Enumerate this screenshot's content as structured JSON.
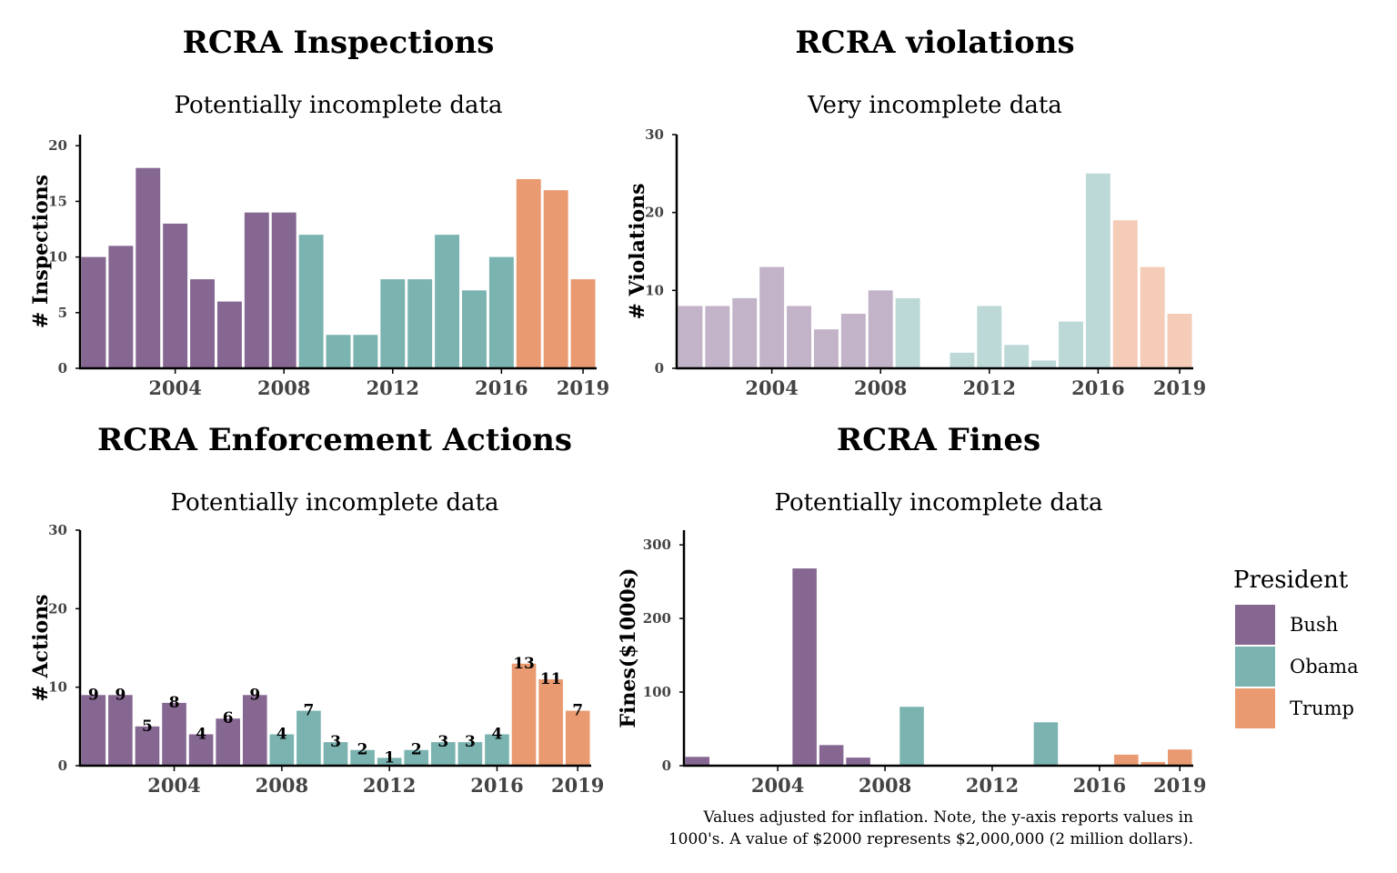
{
  "colors": {
    "Bush": "#866792",
    "Obama": "#7ab3b0",
    "Trump": "#e99a71"
  },
  "legend": {
    "title": "President",
    "items": [
      "Bush",
      "Obama",
      "Trump"
    ]
  },
  "note_lines": [
    "Values adjusted for inflation. Note, the y-axis reports values in",
    "1000's. A value of $2000 represents $2,000,000 (2 million dollars)."
  ],
  "chart_data": [
    {
      "type": "bar",
      "title": "RCRA Inspections",
      "subtitle": "Potentially incomplete data",
      "ylabel": "# Inspections",
      "ylim": [
        0,
        21
      ],
      "yticks": [
        0,
        5,
        10,
        15,
        20
      ],
      "xticks": [
        2004,
        2008,
        2012,
        2016,
        2019
      ],
      "faded": false,
      "data_labels": false,
      "bars": [
        {
          "year": 2001,
          "value": 10,
          "president": "Bush"
        },
        {
          "year": 2002,
          "value": 11,
          "president": "Bush"
        },
        {
          "year": 2003,
          "value": 18,
          "president": "Bush"
        },
        {
          "year": 2004,
          "value": 13,
          "president": "Bush"
        },
        {
          "year": 2005,
          "value": 8,
          "president": "Bush"
        },
        {
          "year": 2006,
          "value": 6,
          "president": "Bush"
        },
        {
          "year": 2007,
          "value": 14,
          "president": "Bush"
        },
        {
          "year": 2008,
          "value": 14,
          "president": "Bush"
        },
        {
          "year": 2009,
          "value": 12,
          "president": "Obama"
        },
        {
          "year": 2010,
          "value": 3,
          "president": "Obama"
        },
        {
          "year": 2011,
          "value": 3,
          "president": "Obama"
        },
        {
          "year": 2012,
          "value": 8,
          "president": "Obama"
        },
        {
          "year": 2013,
          "value": 8,
          "president": "Obama"
        },
        {
          "year": 2014,
          "value": 12,
          "president": "Obama"
        },
        {
          "year": 2015,
          "value": 7,
          "president": "Obama"
        },
        {
          "year": 2016,
          "value": 10,
          "president": "Obama"
        },
        {
          "year": 2017,
          "value": 17,
          "president": "Trump"
        },
        {
          "year": 2018,
          "value": 16,
          "president": "Trump"
        },
        {
          "year": 2019,
          "value": 8,
          "president": "Trump"
        }
      ]
    },
    {
      "type": "bar",
      "title": "RCRA violations",
      "subtitle": "Very incomplete data",
      "ylabel": "# Violations",
      "ylim": [
        0,
        30
      ],
      "yticks": [
        0,
        10,
        20,
        30
      ],
      "xticks": [
        2004,
        2008,
        2012,
        2016,
        2019
      ],
      "faded": true,
      "data_labels": false,
      "bars": [
        {
          "year": 2001,
          "value": 8,
          "president": "Bush"
        },
        {
          "year": 2002,
          "value": 8,
          "president": "Bush"
        },
        {
          "year": 2003,
          "value": 9,
          "president": "Bush"
        },
        {
          "year": 2004,
          "value": 13,
          "president": "Bush"
        },
        {
          "year": 2005,
          "value": 8,
          "president": "Bush"
        },
        {
          "year": 2006,
          "value": 5,
          "president": "Bush"
        },
        {
          "year": 2007,
          "value": 7,
          "president": "Bush"
        },
        {
          "year": 2008,
          "value": 10,
          "president": "Bush"
        },
        {
          "year": 2009,
          "value": 9,
          "president": "Obama"
        },
        {
          "year": 2011,
          "value": 2,
          "president": "Obama"
        },
        {
          "year": 2012,
          "value": 8,
          "president": "Obama"
        },
        {
          "year": 2013,
          "value": 3,
          "president": "Obama"
        },
        {
          "year": 2014,
          "value": 1,
          "president": "Obama"
        },
        {
          "year": 2015,
          "value": 6,
          "president": "Obama"
        },
        {
          "year": 2016,
          "value": 25,
          "president": "Obama"
        },
        {
          "year": 2017,
          "value": 19,
          "president": "Trump"
        },
        {
          "year": 2018,
          "value": 13,
          "president": "Trump"
        },
        {
          "year": 2019,
          "value": 7,
          "president": "Trump"
        }
      ]
    },
    {
      "type": "bar",
      "title": "RCRA Enforcement Actions",
      "subtitle": "Potentially incomplete data",
      "ylabel": "# Actions",
      "ylim": [
        0,
        30
      ],
      "yticks": [
        0,
        10,
        20,
        30
      ],
      "xticks": [
        2004,
        2008,
        2012,
        2016,
        2019
      ],
      "faded": false,
      "data_labels": true,
      "bars": [
        {
          "year": 2001,
          "value": 9,
          "president": "Bush"
        },
        {
          "year": 2002,
          "value": 9,
          "president": "Bush"
        },
        {
          "year": 2003,
          "value": 5,
          "president": "Bush"
        },
        {
          "year": 2004,
          "value": 8,
          "president": "Bush"
        },
        {
          "year": 2005,
          "value": 4,
          "president": "Bush"
        },
        {
          "year": 2006,
          "value": 6,
          "president": "Bush"
        },
        {
          "year": 2007,
          "value": 9,
          "president": "Bush"
        },
        {
          "year": 2008,
          "value": 4,
          "president": "Obama"
        },
        {
          "year": 2009,
          "value": 7,
          "president": "Obama"
        },
        {
          "year": 2010,
          "value": 3,
          "president": "Obama"
        },
        {
          "year": 2011,
          "value": 2,
          "president": "Obama"
        },
        {
          "year": 2012,
          "value": 1,
          "president": "Obama"
        },
        {
          "year": 2013,
          "value": 2,
          "president": "Obama"
        },
        {
          "year": 2014,
          "value": 3,
          "president": "Obama"
        },
        {
          "year": 2015,
          "value": 3,
          "president": "Obama"
        },
        {
          "year": 2016,
          "value": 4,
          "president": "Obama"
        },
        {
          "year": 2017,
          "value": 13,
          "president": "Trump"
        },
        {
          "year": 2018,
          "value": 11,
          "president": "Trump"
        },
        {
          "year": 2019,
          "value": 7,
          "president": "Trump"
        }
      ]
    },
    {
      "type": "bar",
      "title": "RCRA Fines",
      "subtitle": "Potentially incomplete data",
      "ylabel": "Fines($1000s)",
      "ylim": [
        0,
        320
      ],
      "yticks": [
        0,
        100,
        200,
        300
      ],
      "xticks": [
        2004,
        2008,
        2012,
        2016,
        2019
      ],
      "faded": false,
      "data_labels": false,
      "bars": [
        {
          "year": 2001,
          "value": 12,
          "president": "Bush"
        },
        {
          "year": 2005,
          "value": 268,
          "president": "Bush"
        },
        {
          "year": 2006,
          "value": 28,
          "president": "Bush"
        },
        {
          "year": 2007,
          "value": 11,
          "president": "Bush"
        },
        {
          "year": 2009,
          "value": 80,
          "president": "Obama"
        },
        {
          "year": 2014,
          "value": 59,
          "president": "Obama"
        },
        {
          "year": 2017,
          "value": 15,
          "president": "Trump"
        },
        {
          "year": 2018,
          "value": 5,
          "president": "Trump"
        },
        {
          "year": 2019,
          "value": 22,
          "president": "Trump"
        }
      ]
    }
  ]
}
